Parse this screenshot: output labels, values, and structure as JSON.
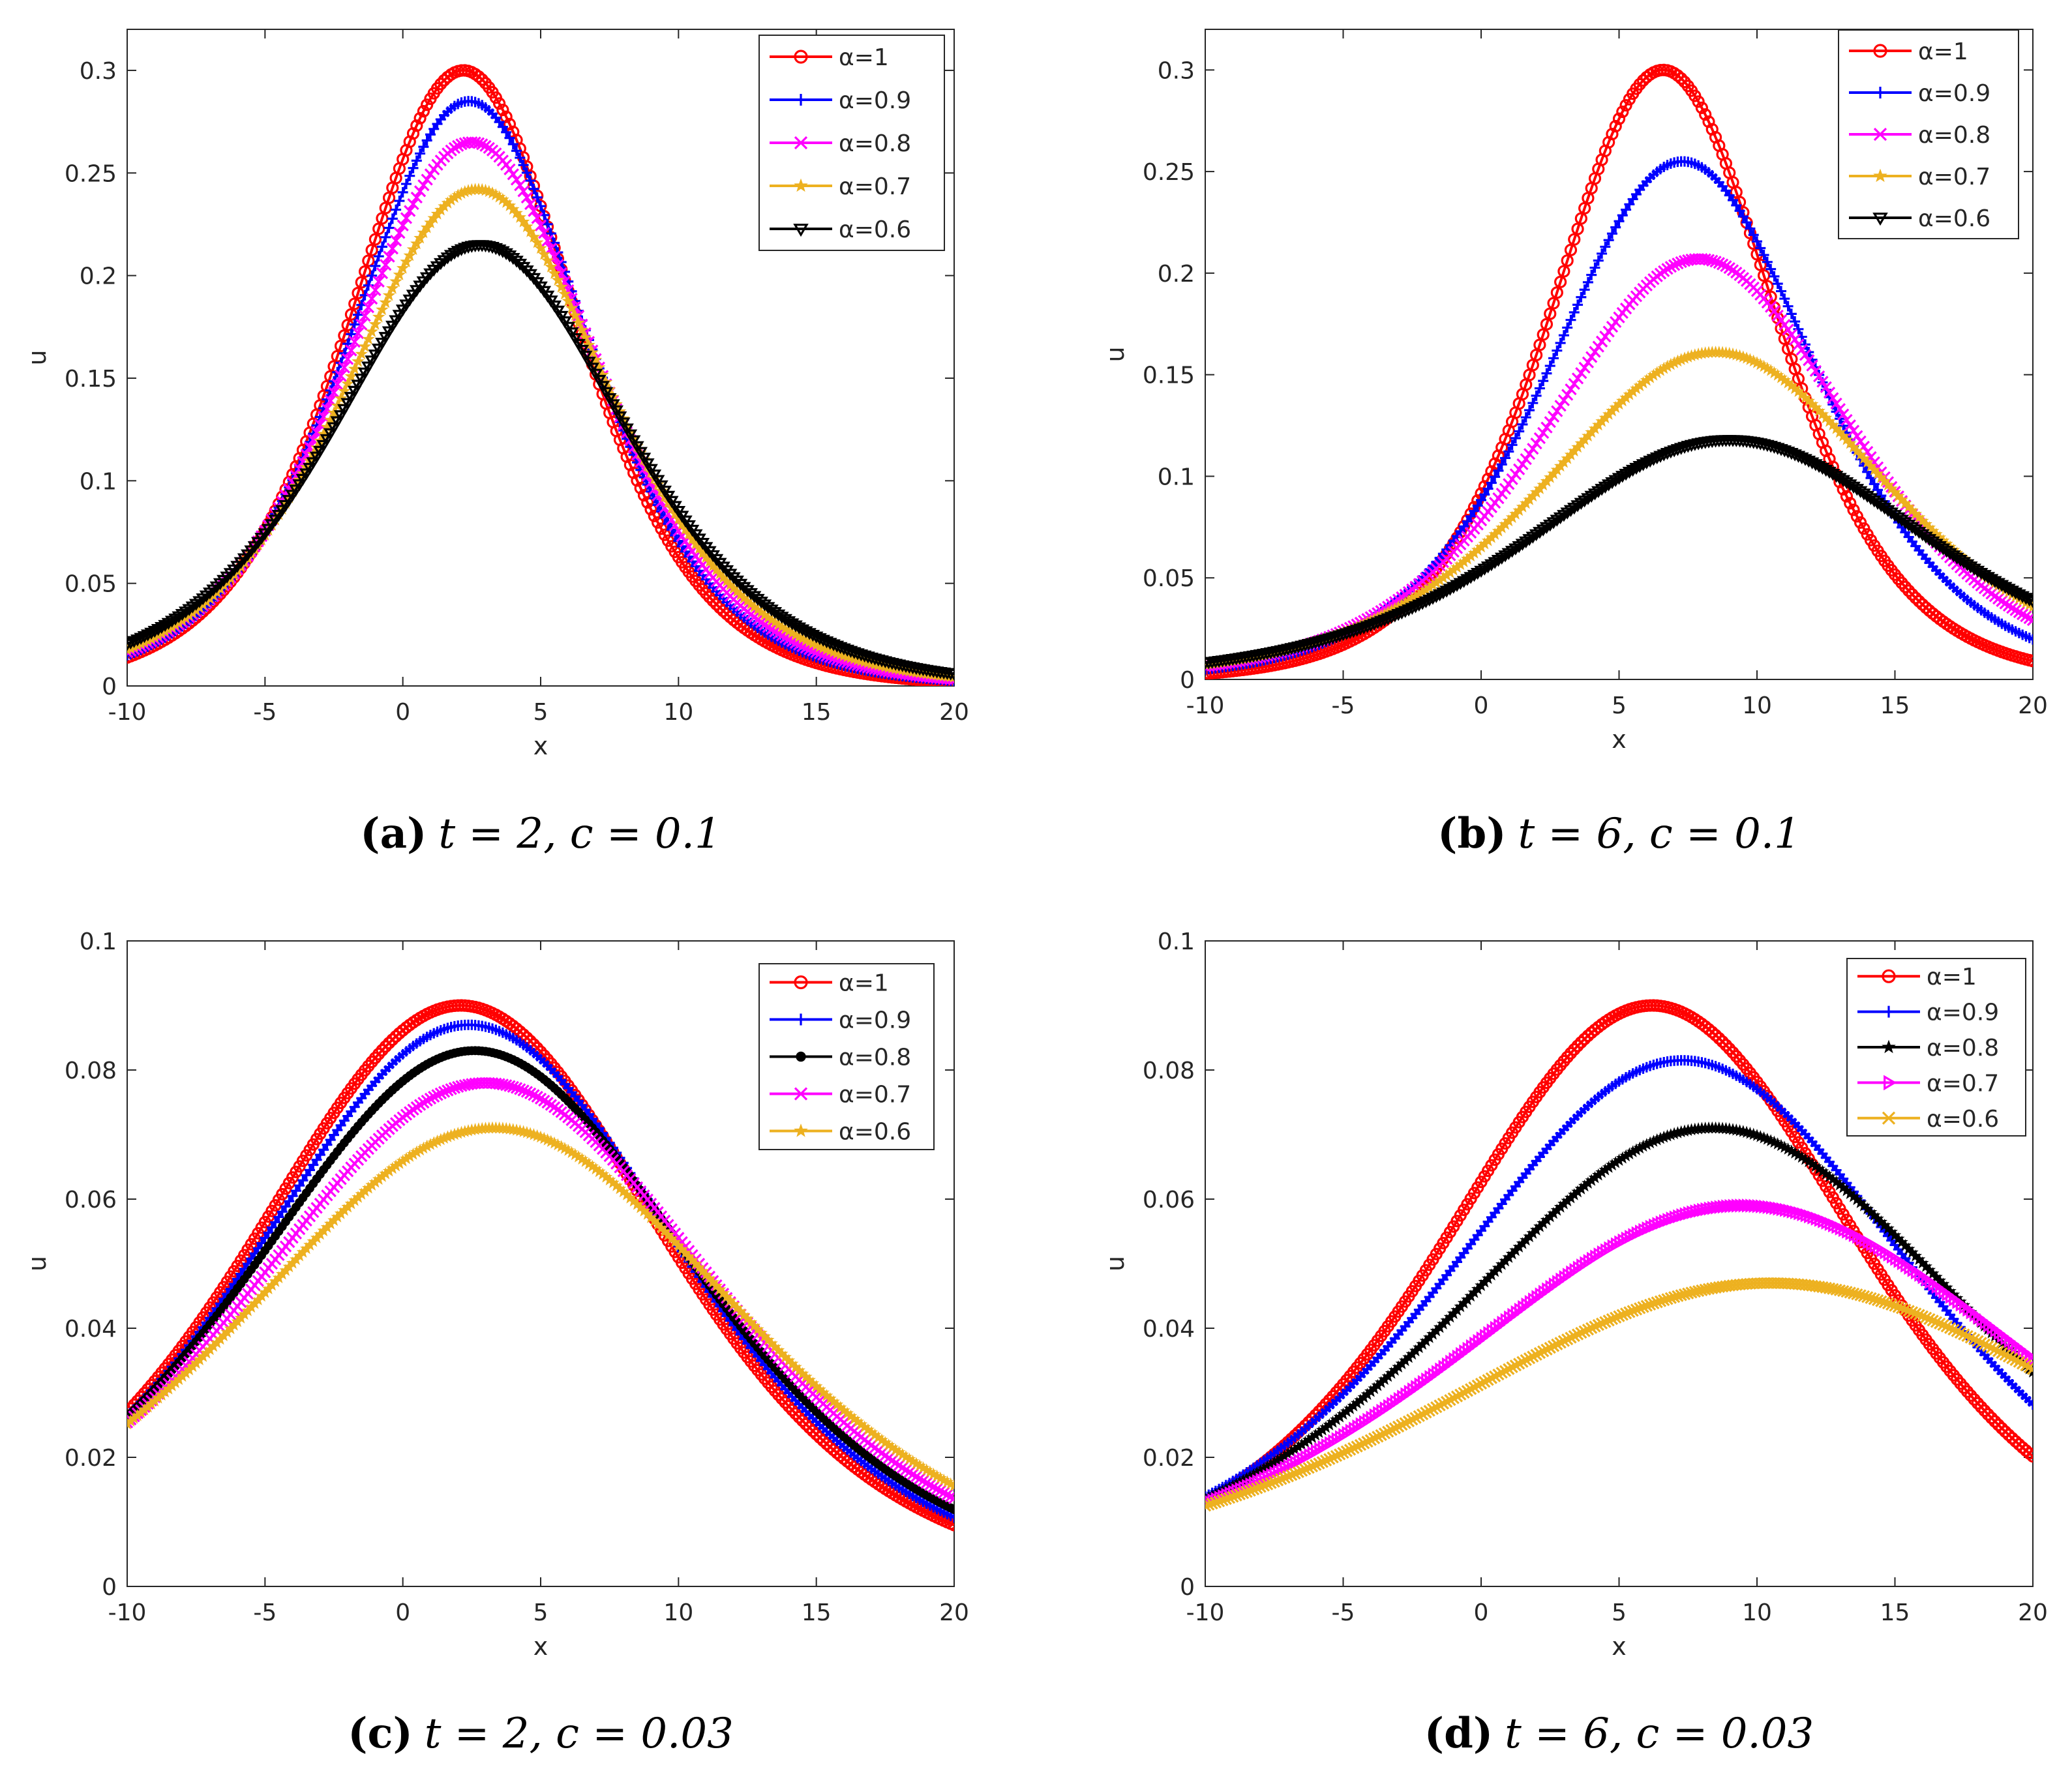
{
  "panels": [
    {
      "caption": {
        "letter": "(a)",
        "text": "t = 2, c = 0.1"
      },
      "chart_data": {
        "type": "line",
        "xlabel": "x",
        "ylabel": "u",
        "xlim": [
          -10,
          20
        ],
        "ylim": [
          0,
          0.32
        ],
        "xticks": [
          "-10",
          "-5",
          "0",
          "5",
          "10",
          "15",
          "20"
        ],
        "yticks": [
          "0",
          "0.05",
          "0.1",
          "0.15",
          "0.2",
          "0.25",
          "0.3"
        ],
        "series": [
          {
            "name": "α=1",
            "marker": "circle",
            "color": "#ff0000",
            "params": {
              "peak": 0.3,
              "center": 2.2,
              "width": 5.5
            }
          },
          {
            "name": "α=0.9",
            "marker": "plus",
            "color": "#0000ff",
            "params": {
              "peak": 0.285,
              "center": 2.4,
              "width": 5.75
            }
          },
          {
            "name": "α=0.8",
            "marker": "x",
            "color": "#ff00ff",
            "params": {
              "peak": 0.265,
              "center": 2.5,
              "width": 6.05
            }
          },
          {
            "name": "α=0.7",
            "marker": "star",
            "color": "#edb120",
            "params": {
              "peak": 0.242,
              "center": 2.7,
              "width": 6.4
            }
          },
          {
            "name": "α=0.6",
            "marker": "triangle",
            "color": "#000000",
            "params": {
              "peak": 0.215,
              "center": 2.8,
              "width": 6.95
            }
          }
        ]
      }
    },
    {
      "caption": {
        "letter": "(b)",
        "text": "t = 6, c = 0.1"
      },
      "chart_data": {
        "type": "line",
        "xlabel": "x",
        "ylabel": "u",
        "xlim": [
          -10,
          20
        ],
        "ylim": [
          0,
          0.32
        ],
        "xticks": [
          "-10",
          "-5",
          "0",
          "5",
          "10",
          "15",
          "20"
        ],
        "yticks": [
          "0",
          "0.05",
          "0.1",
          "0.15",
          "0.2",
          "0.25",
          "0.3"
        ],
        "series": [
          {
            "name": "α=1",
            "marker": "circle",
            "color": "#ff0000",
            "params": {
              "peak": 0.3,
              "center": 6.6,
              "width": 5.5
            }
          },
          {
            "name": "α=0.9",
            "marker": "plus",
            "color": "#0000ff",
            "params": {
              "peak": 0.255,
              "center": 7.3,
              "width": 6.5
            }
          },
          {
            "name": "α=0.8",
            "marker": "x",
            "color": "#ff00ff",
            "params": {
              "peak": 0.207,
              "center": 7.9,
              "width": 7.4
            }
          },
          {
            "name": "α=0.7",
            "marker": "star",
            "color": "#edb120",
            "params": {
              "peak": 0.161,
              "center": 8.5,
              "width": 8.3
            }
          },
          {
            "name": "α=0.6",
            "marker": "triangle",
            "color": "#000000",
            "params": {
              "peak": 0.118,
              "center": 9.0,
              "width": 9.5
            }
          }
        ]
      }
    },
    {
      "caption": {
        "letter": "(c)",
        "text": "t = 2, c = 0.03"
      },
      "chart_data": {
        "type": "line",
        "xlabel": "x",
        "ylabel": "u",
        "xlim": [
          -10,
          20
        ],
        "ylim": [
          0,
          0.1
        ],
        "xticks": [
          "-10",
          "-5",
          "0",
          "5",
          "10",
          "15",
          "20"
        ],
        "yticks": [
          "0",
          "0.02",
          "0.04",
          "0.06",
          "0.08",
          "0.1"
        ],
        "series": [
          {
            "name": "α=1",
            "marker": "circle",
            "color": "#ff0000",
            "params": {
              "peak": 0.09,
              "center": 2.1,
              "width": 10.0
            }
          },
          {
            "name": "α=0.9",
            "marker": "plus",
            "color": "#0000ff",
            "params": {
              "peak": 0.087,
              "center": 2.4,
              "width": 10.3
            }
          },
          {
            "name": "α=0.8",
            "marker": "dot",
            "color": "#000000",
            "params": {
              "peak": 0.083,
              "center": 2.6,
              "width": 10.7
            }
          },
          {
            "name": "α=0.7",
            "marker": "x",
            "color": "#ff00ff",
            "params": {
              "peak": 0.078,
              "center": 3.0,
              "width": 11.2
            }
          },
          {
            "name": "α=0.6",
            "marker": "star",
            "color": "#edb120",
            "params": {
              "peak": 0.071,
              "center": 3.3,
              "width": 12.0
            }
          }
        ]
      }
    },
    {
      "caption": {
        "letter": "(d)",
        "text": "t = 6, c = 0.03"
      },
      "chart_data": {
        "type": "line",
        "xlabel": "x",
        "ylabel": "u",
        "xlim": [
          -10,
          20
        ],
        "ylim": [
          0,
          0.1
        ],
        "xticks": [
          "-10",
          "-5",
          "0",
          "5",
          "10",
          "15",
          "20"
        ],
        "yticks": [
          "0",
          "0.02",
          "0.04",
          "0.06",
          "0.08",
          "0.1"
        ],
        "series": [
          {
            "name": "α=1",
            "marker": "circle",
            "color": "#ff0000",
            "params": {
              "peak": 0.09,
              "center": 6.2,
              "width": 10.0
            }
          },
          {
            "name": "α=0.9",
            "marker": "plus",
            "color": "#0000ff",
            "params": {
              "peak": 0.0815,
              "center": 7.3,
              "width": 11.3
            }
          },
          {
            "name": "α=0.8",
            "marker": "star",
            "color": "#000000",
            "params": {
              "peak": 0.071,
              "center": 8.4,
              "width": 12.5
            }
          },
          {
            "name": "α=0.7",
            "marker": "triangle-right",
            "color": "#ff00ff",
            "params": {
              "peak": 0.059,
              "center": 9.5,
              "width": 14.0
            }
          },
          {
            "name": "α=0.6",
            "marker": "x",
            "color": "#edb120",
            "params": {
              "peak": 0.047,
              "center": 10.5,
              "width": 16.0
            }
          }
        ]
      }
    }
  ]
}
